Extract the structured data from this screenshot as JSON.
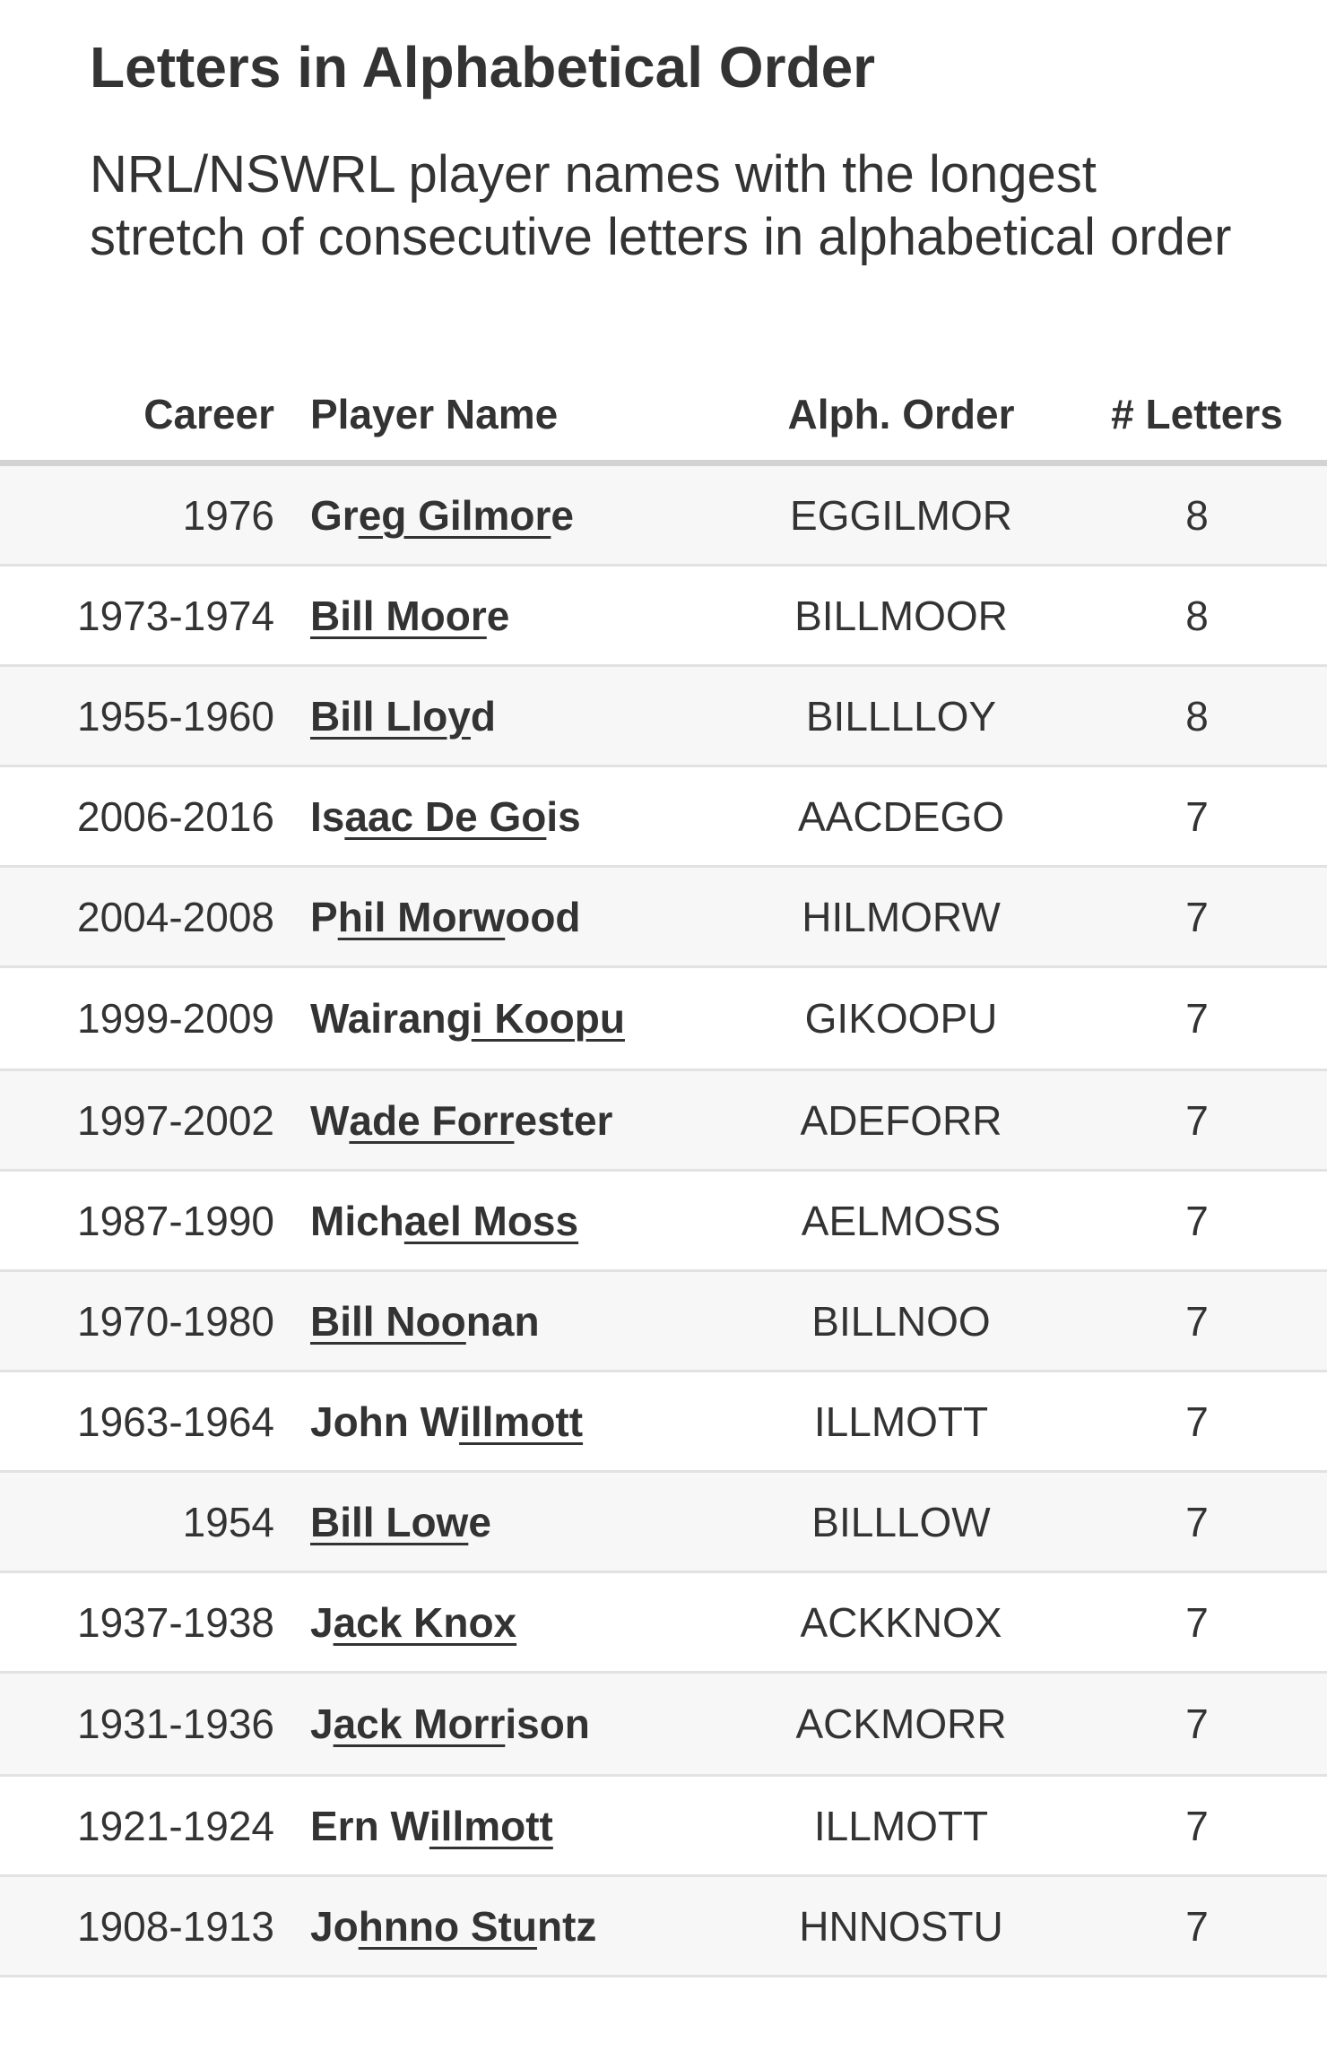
{
  "title": "Letters in Alphabetical Order",
  "subtitle": "NRL/NSWRL player names with the longest stretch of consecutive letters in alphabetical order",
  "columns": {
    "career": "Career",
    "name": "Player Name",
    "alph": "Alph. Order",
    "letters": "# Letters"
  },
  "rows": [
    {
      "career": "1976",
      "name": [
        "Gr",
        "eg Gilmor",
        "e"
      ],
      "alph": "EGGILMOR",
      "letters": "8"
    },
    {
      "career": "1973-1974",
      "name": [
        "",
        "Bill Moor",
        "e"
      ],
      "alph": "BILLMOOR",
      "letters": "8"
    },
    {
      "career": "1955-1960",
      "name": [
        "",
        "Bill Lloy",
        "d"
      ],
      "alph": "BILLLLOY",
      "letters": "8"
    },
    {
      "career": "2006-2016",
      "name": [
        "Is",
        "aac De Go",
        "is"
      ],
      "alph": "AACDEGO",
      "letters": "7"
    },
    {
      "career": "2004-2008",
      "name": [
        "P",
        "hil Morw",
        "ood"
      ],
      "alph": "HILMORW",
      "letters": "7"
    },
    {
      "career": "1999-2009",
      "name": [
        "Wairang",
        "i Koopu",
        ""
      ],
      "alph": "GIKOOPU",
      "letters": "7"
    },
    {
      "career": "1997-2002",
      "name": [
        "W",
        "ade Forr",
        "ester"
      ],
      "alph": "ADEFORR",
      "letters": "7"
    },
    {
      "career": "1987-1990",
      "name": [
        "Mich",
        "ael Moss",
        ""
      ],
      "alph": "AELMOSS",
      "letters": "7"
    },
    {
      "career": "1970-1980",
      "name": [
        "",
        "Bill Noo",
        "nan"
      ],
      "alph": "BILLNOO",
      "letters": "7"
    },
    {
      "career": "1963-1964",
      "name": [
        "John W",
        "illmott",
        ""
      ],
      "alph": "ILLMOTT",
      "letters": "7"
    },
    {
      "career": "1954",
      "name": [
        "",
        "Bill Low",
        "e"
      ],
      "alph": "BILLLOW",
      "letters": "7"
    },
    {
      "career": "1937-1938",
      "name": [
        "J",
        "ack Knox",
        ""
      ],
      "alph": "ACKKNOX",
      "letters": "7"
    },
    {
      "career": "1931-1936",
      "name": [
        "J",
        "ack Morr",
        "ison"
      ],
      "alph": "ACKMORR",
      "letters": "7"
    },
    {
      "career": "1921-1924",
      "name": [
        "Ern W",
        "illmott",
        ""
      ],
      "alph": "ILLMOTT",
      "letters": "7"
    },
    {
      "career": "1908-1913",
      "name": [
        "Jo",
        "hnno Stu",
        "ntz"
      ],
      "alph": "HNNOSTU",
      "letters": "7"
    }
  ]
}
